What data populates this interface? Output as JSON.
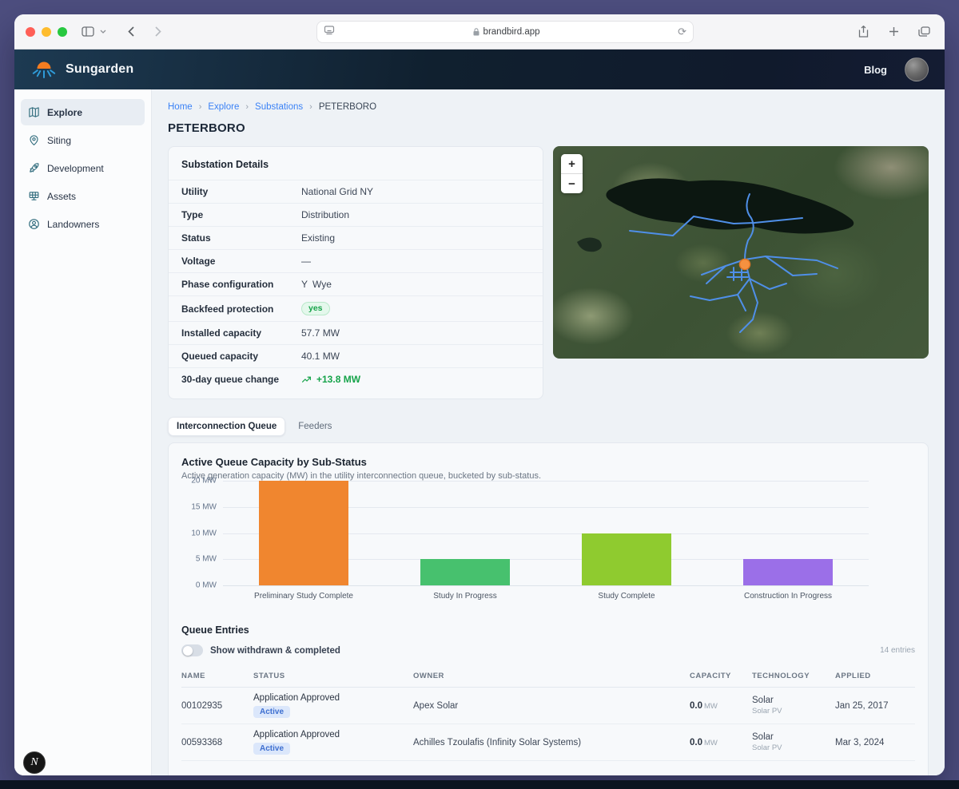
{
  "frame": {
    "url": "brandbird.app"
  },
  "header": {
    "brand": "Sungarden",
    "blog_label": "Blog"
  },
  "sidebar": {
    "items": [
      {
        "id": "explore",
        "label": "Explore",
        "icon": "map-icon",
        "active": true
      },
      {
        "id": "siting",
        "label": "Siting",
        "icon": "pin-icon",
        "active": false
      },
      {
        "id": "development",
        "label": "Development",
        "icon": "rocket-icon",
        "active": false
      },
      {
        "id": "assets",
        "label": "Assets",
        "icon": "solar-panel-icon",
        "active": false
      },
      {
        "id": "landowners",
        "label": "Landowners",
        "icon": "person-icon",
        "active": false
      }
    ]
  },
  "breadcrumb": {
    "separator": "›",
    "items": [
      {
        "label": "Home",
        "link": true
      },
      {
        "label": "Explore",
        "link": true
      },
      {
        "label": "Substations",
        "link": true
      },
      {
        "label": "PETERBORO",
        "link": false
      }
    ]
  },
  "page": {
    "title": "PETERBORO"
  },
  "details": {
    "title": "Substation Details",
    "rows": [
      {
        "label": "Utility",
        "value": "National Grid NY",
        "type": "text"
      },
      {
        "label": "Type",
        "value": "Distribution",
        "type": "text"
      },
      {
        "label": "Status",
        "value": "Existing",
        "type": "text"
      },
      {
        "label": "Voltage",
        "value": "—",
        "type": "text"
      },
      {
        "label": "Phase configuration",
        "value": "Wye",
        "glyph": "Y",
        "type": "phase"
      },
      {
        "label": "Backfeed protection",
        "value": "yes",
        "type": "badge-green"
      },
      {
        "label": "Installed capacity",
        "value": "57.7 MW",
        "type": "text"
      },
      {
        "label": "Queued capacity",
        "value": "40.1 MW",
        "type": "text"
      },
      {
        "label": "30-day queue change",
        "value": "+13.8 MW",
        "type": "trend-up"
      }
    ]
  },
  "map": {
    "zoom_in": "+",
    "zoom_out": "−",
    "marker_color": "#f59140",
    "line_color": "#4f8fe8"
  },
  "tabs": [
    {
      "label": "Interconnection Queue",
      "active": true
    },
    {
      "label": "Feeders",
      "active": false
    }
  ],
  "chart_data": {
    "type": "bar",
    "title": "Active Queue Capacity by Sub-Status",
    "subtitle": "Active generation capacity (MW) in the utility interconnection queue, bucketed by sub-status.",
    "categories": [
      "Preliminary Study Complete",
      "Study In Progress",
      "Study Complete",
      "Construction In Progress"
    ],
    "values": [
      20,
      5,
      10,
      5
    ],
    "colors": [
      "#f0862f",
      "#47c16e",
      "#8fcb2f",
      "#9b6fe8"
    ],
    "ylabel": "MW",
    "ylim": [
      0,
      20
    ],
    "yticks": [
      {
        "v": 0,
        "label": "0 MW"
      },
      {
        "v": 5,
        "label": "5 MW"
      },
      {
        "v": 10,
        "label": "10 MW"
      },
      {
        "v": 15,
        "label": "15 MW"
      },
      {
        "v": 20,
        "label": "20 MW"
      }
    ],
    "grid": true,
    "legend": false
  },
  "queue": {
    "title": "Queue Entries",
    "toggle_label": "Show withdrawn & completed",
    "toggle_on": false,
    "entries_count": "14 entries",
    "columns": [
      "NAME",
      "STATUS",
      "OWNER",
      "CAPACITY",
      "TECHNOLOGY",
      "APPLIED"
    ],
    "rows": [
      {
        "name": "00102935",
        "status": "Application Approved",
        "status_badge": "Active",
        "owner": "Apex Solar",
        "capacity": "0.0",
        "capacity_unit": "MW",
        "technology": "Solar",
        "technology_sub": "Solar PV",
        "applied": "Jan 25, 2017"
      },
      {
        "name": "00593368",
        "status": "Application Approved",
        "status_badge": "Active",
        "owner": "Achilles Tzoulafis (Infinity Solar Systems)",
        "capacity": "0.0",
        "capacity_unit": "MW",
        "technology": "Solar",
        "technology_sub": "Solar PV",
        "applied": "Mar 3, 2024"
      }
    ]
  },
  "dev_badge": {
    "label": "N"
  }
}
